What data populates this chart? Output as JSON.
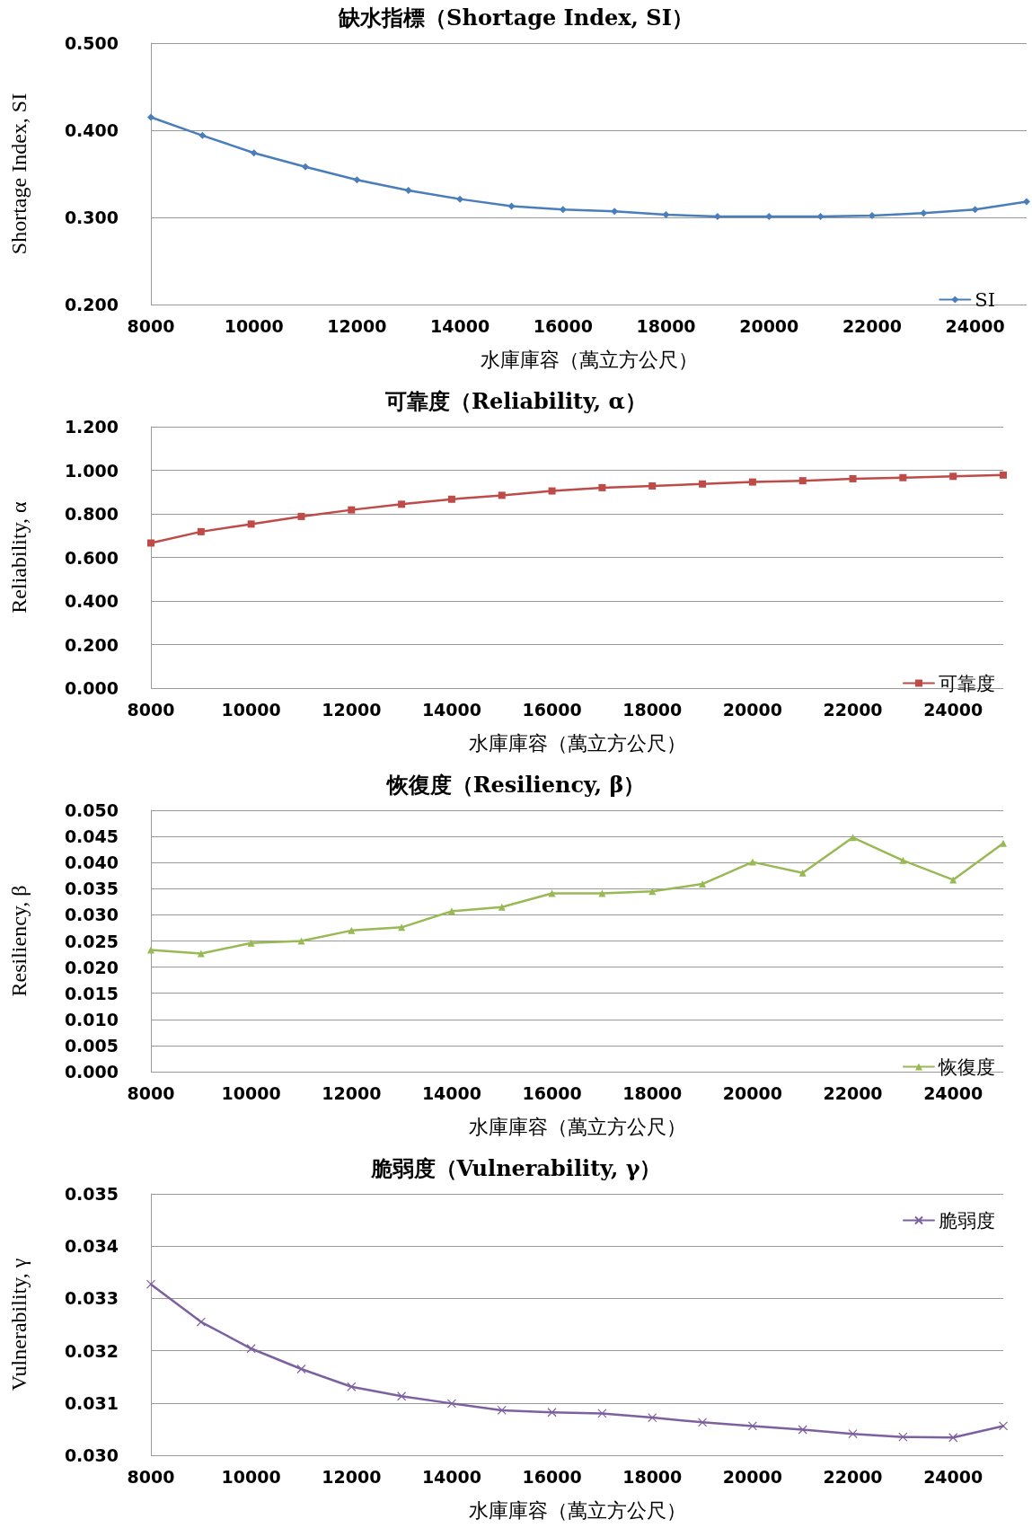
{
  "chart_data": [
    {
      "type": "line",
      "title": "缺水指標（Shortage Index, SI）",
      "xlabel": "水庫庫容（萬立方公尺）",
      "ylabel": "Shortage Index, SI",
      "categories": [
        "8000",
        null,
        "10000",
        null,
        "12000",
        null,
        "14000",
        null,
        "16000",
        null,
        "18000",
        null,
        "20000",
        null,
        "22000",
        null,
        "24000",
        null
      ],
      "series": [
        {
          "name": "SI",
          "color": "#4a7ebb",
          "values": [
            0.415,
            0.394,
            0.374,
            0.358,
            0.343,
            0.331,
            0.321,
            0.313,
            0.309,
            0.307,
            0.303,
            0.301,
            0.301,
            0.301,
            0.302,
            0.305,
            0.309,
            0.318
          ]
        }
      ],
      "ylim": [
        0.2,
        0.5
      ],
      "yticks": [
        {
          "value": 0.2,
          "label": "0.200"
        },
        {
          "value": 0.3,
          "label": "0.300"
        },
        {
          "value": 0.4,
          "label": "0.400"
        },
        {
          "value": 0.5,
          "label": "0.500"
        }
      ],
      "grid": "y",
      "legend": "bottom right",
      "marker": "diamond",
      "line_style": "solid"
    },
    {
      "type": "line",
      "title": "可靠度（Reliability, α）",
      "xlabel": "水庫庫容（萬立方公尺）",
      "ylabel": "Reliability, α",
      "categories": [
        "8000",
        null,
        "10000",
        null,
        "12000",
        null,
        "14000",
        null,
        "16000",
        null,
        "18000",
        null,
        "20000",
        null,
        "22000",
        null,
        "24000",
        null
      ],
      "series": [
        {
          "name": "可靠度",
          "color": "#be4b48",
          "values": [
            0.666,
            0.718,
            0.753,
            0.788,
            0.818,
            0.844,
            0.867,
            0.885,
            0.905,
            0.92,
            0.928,
            0.937,
            0.946,
            0.952,
            0.961,
            0.966,
            0.972,
            0.978
          ]
        }
      ],
      "ylim": [
        0,
        1.2
      ],
      "yticks": [
        {
          "value": 0,
          "label": "0.000"
        },
        {
          "value": 0.2,
          "label": "0.200"
        },
        {
          "value": 0.4,
          "label": "0.400"
        },
        {
          "value": 0.6,
          "label": "0.600"
        },
        {
          "value": 0.8,
          "label": "0.800"
        },
        {
          "value": 1,
          "label": "1.000"
        },
        {
          "value": 1.2,
          "label": "1.200"
        }
      ],
      "grid": "y",
      "legend": "bottom right",
      "marker": "square",
      "line_style": "solid"
    },
    {
      "type": "line",
      "title": "恢復度（Resiliency, β）",
      "xlabel": "水庫庫容（萬立方公尺）",
      "ylabel": "Resiliency, β",
      "categories": [
        "8000",
        null,
        "10000",
        null,
        "12000",
        null,
        "14000",
        null,
        "16000",
        null,
        "18000",
        null,
        "20000",
        null,
        "22000",
        null,
        "24000",
        null
      ],
      "series": [
        {
          "name": "恢復度",
          "color": "#98b954",
          "values": [
            0.0233,
            0.0226,
            0.0246,
            0.025,
            0.027,
            0.0276,
            0.0307,
            0.0315,
            0.0341,
            0.0341,
            0.0345,
            0.0359,
            0.0401,
            0.038,
            0.0448,
            0.0404,
            0.0367,
            0.0437
          ]
        }
      ],
      "ylim": [
        0,
        0.05
      ],
      "yticks": [
        {
          "value": 0,
          "label": "0.000"
        },
        {
          "value": 0.005,
          "label": "0.005"
        },
        {
          "value": 0.01,
          "label": "0.010"
        },
        {
          "value": 0.015,
          "label": "0.015"
        },
        {
          "value": 0.02,
          "label": "0.020"
        },
        {
          "value": 0.025,
          "label": "0.025"
        },
        {
          "value": 0.03,
          "label": "0.030"
        },
        {
          "value": 0.035,
          "label": "0.035"
        },
        {
          "value": 0.04,
          "label": "0.040"
        },
        {
          "value": 0.045,
          "label": "0.045"
        },
        {
          "value": 0.05,
          "label": "0.050"
        }
      ],
      "grid": "y",
      "legend": "bottom right",
      "marker": "triangle",
      "line_style": "solid"
    },
    {
      "type": "line",
      "title": "脆弱度（Vulnerability, γ）",
      "xlabel": "水庫庫容（萬立方公尺）",
      "ylabel": "Vulnerability, γ",
      "categories": [
        "8000",
        null,
        "10000",
        null,
        "12000",
        null,
        "14000",
        null,
        "16000",
        null,
        "18000",
        null,
        "20000",
        null,
        "22000",
        null,
        "24000",
        null
      ],
      "series": [
        {
          "name": "脆弱度",
          "color": "#7d60a0",
          "values": [
            0.03327,
            0.03255,
            0.03204,
            0.03165,
            0.03131,
            0.03113,
            0.03099,
            0.03086,
            0.03082,
            0.0308,
            0.03072,
            0.03063,
            0.03056,
            0.03049,
            0.03041,
            0.03035,
            0.03034,
            0.03056
          ]
        }
      ],
      "ylim": [
        0.03,
        0.035
      ],
      "yticks": [
        {
          "value": 0.03,
          "label": "0.030"
        },
        {
          "value": 0.031,
          "label": "0.031"
        },
        {
          "value": 0.032,
          "label": "0.032"
        },
        {
          "value": 0.033,
          "label": "0.033"
        },
        {
          "value": 0.034,
          "label": "0.034"
        },
        {
          "value": 0.035,
          "label": "0.035"
        }
      ],
      "grid": "y",
      "legend": "top right",
      "marker": "cross",
      "line_style": "solid"
    }
  ]
}
